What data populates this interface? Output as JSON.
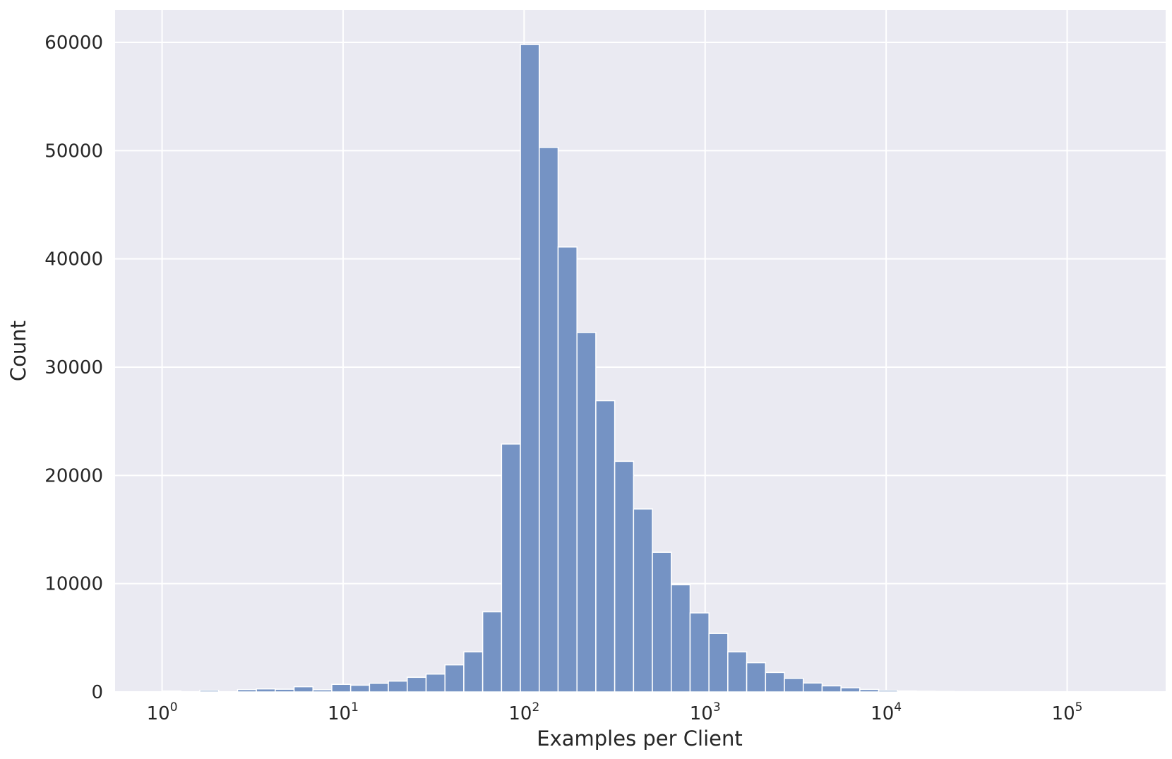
{
  "chart_data": {
    "type": "bar",
    "title": "",
    "xlabel": "Examples per Client",
    "ylabel": "Count",
    "x_scale": "log",
    "xlim": [
      0.55,
      350000
    ],
    "ylim": [
      0,
      63000
    ],
    "grid": true,
    "x_ticks": [
      {
        "base": "10",
        "exp": "0",
        "value": 1
      },
      {
        "base": "10",
        "exp": "1",
        "value": 10
      },
      {
        "base": "10",
        "exp": "2",
        "value": 100
      },
      {
        "base": "10",
        "exp": "3",
        "value": 1000
      },
      {
        "base": "10",
        "exp": "4",
        "value": 10000
      },
      {
        "base": "10",
        "exp": "5",
        "value": 100000
      }
    ],
    "y_ticks": [
      "0",
      "10000",
      "20000",
      "30000",
      "40000",
      "50000",
      "60000"
    ],
    "bin_edges": [
      1.0,
      1.271,
      1.616,
      2.054,
      2.611,
      3.318,
      4.218,
      5.361,
      6.815,
      8.662,
      11.01,
      13.995,
      17.789,
      22.612,
      28.742,
      36.534,
      46.438,
      59.027,
      75.029,
      95.37,
      121.2,
      154.1,
      195.9,
      249.0,
      316.5,
      402.3,
      511.3,
      649.9,
      826.1,
      1050.1,
      1334.8,
      1696.6,
      2156.6,
      2741.2,
      3484.3,
      4428.9,
      5629.6,
      7155.7,
      9095.6,
      11561.3,
      14695.6,
      18679.5,
      23743.4,
      30180.2,
      38362,
      48761,
      61980,
      78782,
      100140,
      127290,
      161800,
      205660
    ],
    "values": [
      80,
      20,
      150,
      20,
      220,
      280,
      250,
      480,
      200,
      700,
      620,
      800,
      1000,
      1350,
      1650,
      2500,
      3700,
      7400,
      22900,
      59800,
      50300,
      41100,
      33200,
      26900,
      21300,
      16900,
      12900,
      9900,
      7300,
      5400,
      3700,
      2700,
      1800,
      1250,
      820,
      560,
      380,
      230,
      150,
      90,
      60,
      40,
      25,
      15,
      10,
      6,
      4,
      3,
      2,
      2,
      1
    ]
  }
}
